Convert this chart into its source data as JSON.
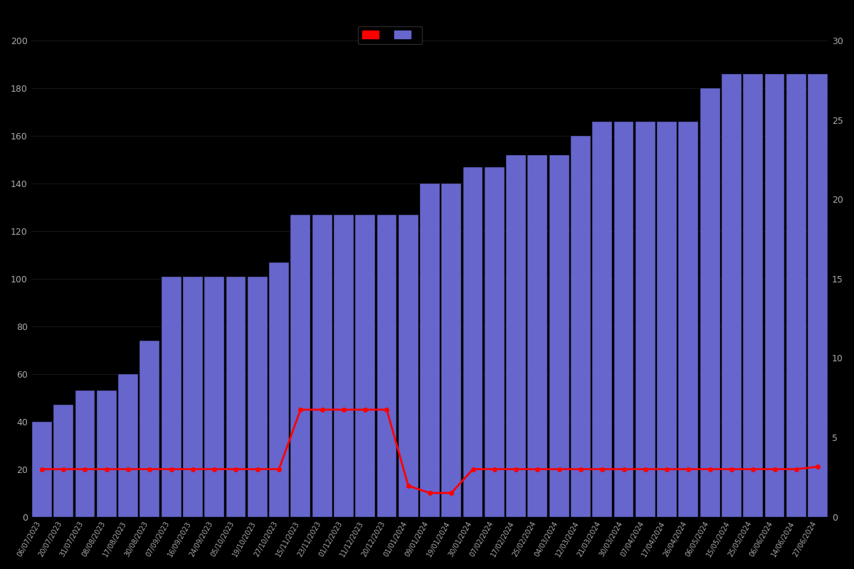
{
  "background_color": "#000000",
  "bar_color": "#6666cc",
  "bar_edge_color": "#000000",
  "line_color": "#ff0000",
  "text_color": "#aaaaaa",
  "dates": [
    "06/07/2023",
    "20/07/2023",
    "31/07/2023",
    "08/08/2023",
    "17/08/2023",
    "30/08/2023",
    "07/09/2023",
    "16/09/2023",
    "24/09/2023",
    "05/10/2023",
    "19/10/2023",
    "27/10/2023",
    "15/11/2023",
    "23/11/2023",
    "01/12/2023",
    "11/12/2023",
    "20/12/2023",
    "01/01/2024",
    "09/01/2024",
    "19/01/2024",
    "30/01/2024",
    "07/02/2024",
    "17/02/2024",
    "25/02/2024",
    "04/03/2024",
    "12/03/2024",
    "21/03/2024",
    "30/03/2024",
    "07/04/2024",
    "17/04/2024",
    "26/04/2024",
    "06/05/2024",
    "15/05/2024",
    "25/05/2024",
    "06/06/2024",
    "14/06/2024",
    "27/06/2024"
  ],
  "bar_values": [
    40,
    47,
    53,
    53,
    60,
    74,
    101,
    101,
    101,
    101,
    101,
    107,
    127,
    127,
    127,
    127,
    127,
    127,
    140,
    140,
    147,
    147,
    152,
    152,
    152,
    160,
    166,
    166,
    166,
    166,
    166,
    180,
    186,
    186,
    186,
    186,
    186
  ],
  "line_values_left": [
    20,
    20,
    20,
    20,
    20,
    20,
    20,
    20,
    20,
    20,
    20,
    20,
    45,
    45,
    45,
    45,
    45,
    13,
    10,
    10,
    20,
    20,
    20,
    20,
    20,
    20,
    20,
    20,
    20,
    20,
    20,
    20,
    20,
    20,
    20,
    20,
    21
  ],
  "ylim_left": [
    0,
    200
  ],
  "ylim_right": [
    0,
    30
  ],
  "yticks_left": [
    0,
    20,
    40,
    60,
    80,
    100,
    120,
    140,
    160,
    180,
    200
  ],
  "yticks_right": [
    0,
    5,
    10,
    15,
    20,
    25,
    30
  ],
  "bar_width": 0.92,
  "figsize": [
    12,
    8
  ],
  "dpi": 100
}
